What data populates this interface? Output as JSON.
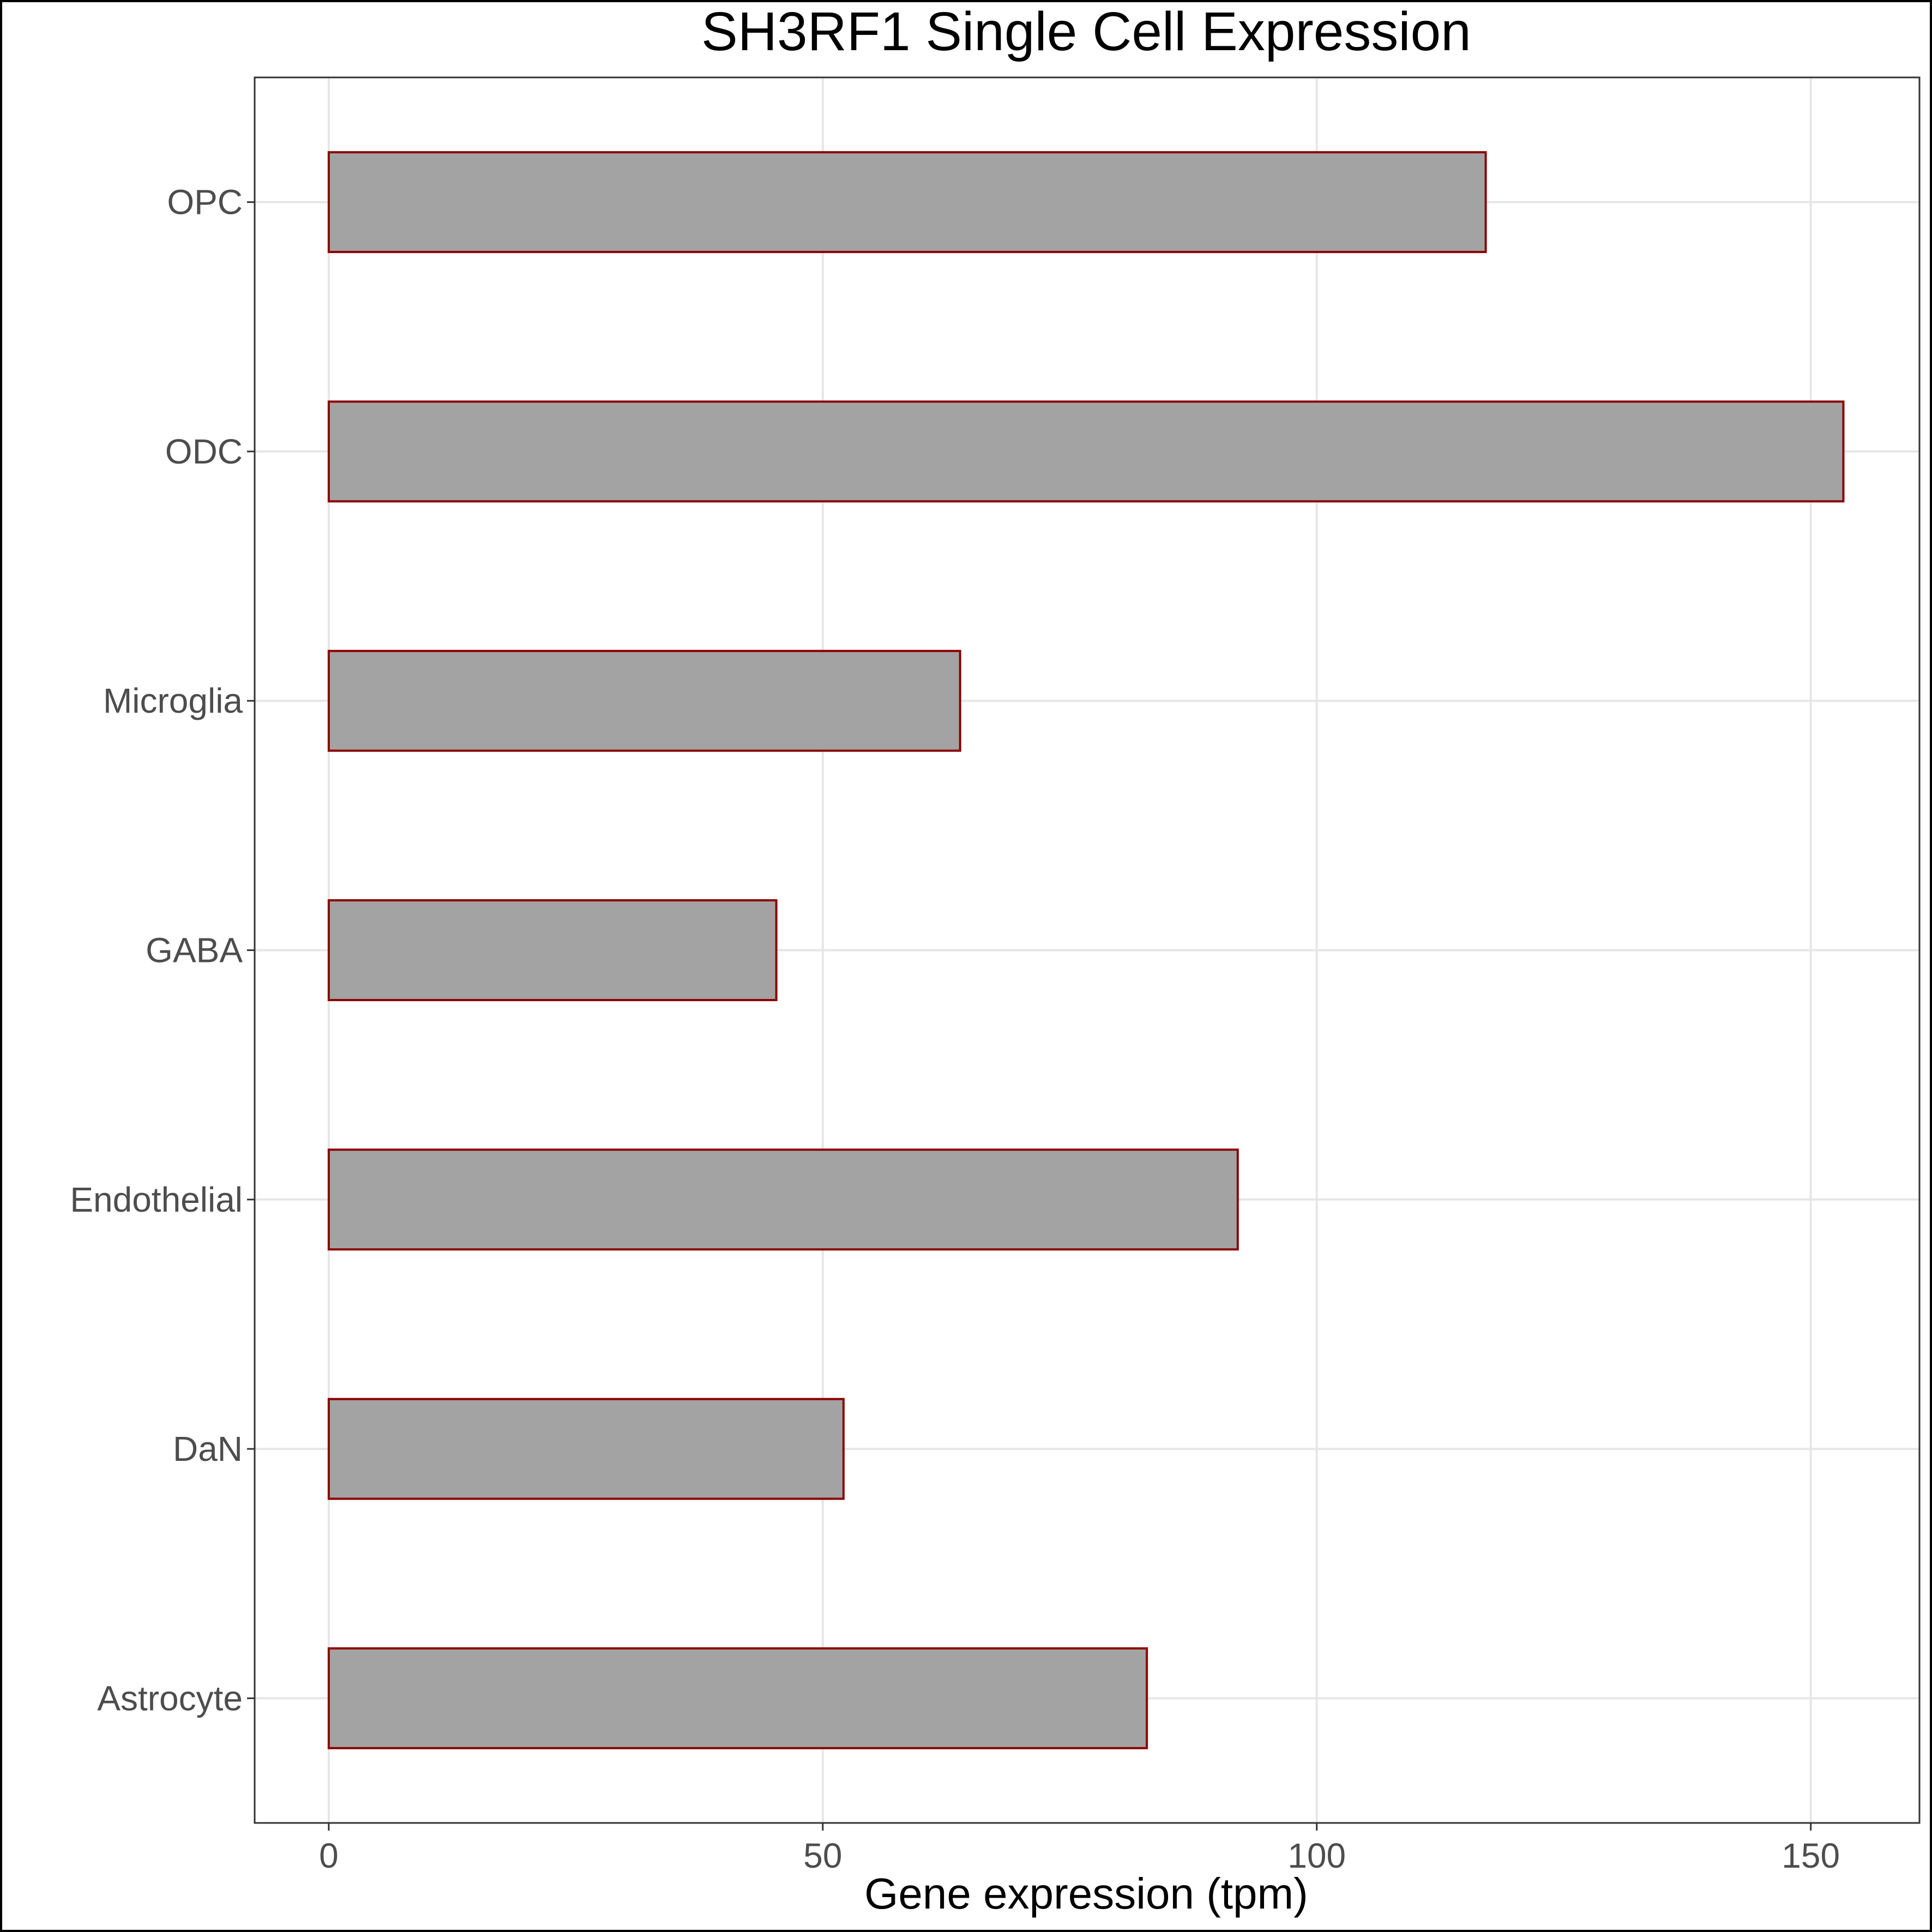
{
  "chart_data": {
    "type": "bar",
    "orientation": "horizontal",
    "title": "SH3RF1 Single Cell Expression",
    "xlabel": "Gene expression (tpm)",
    "ylabel": "",
    "categories": [
      "Astrocyte",
      "DaN",
      "Endothelial",
      "GABA",
      "Microglia",
      "ODC",
      "OPC"
    ],
    "values": [
      82.8,
      52.1,
      92.0,
      45.3,
      63.9,
      153.3,
      117.1
    ],
    "xlim": [
      -7.5,
      161
    ],
    "xticks": [
      0,
      50,
      100,
      150
    ],
    "grid": true,
    "legend": "none",
    "colors": {
      "bar_fill": "#a3a3a3",
      "bar_stroke": "#8b0000",
      "grid": "#e6e6e6",
      "panel_border": "#333333",
      "tick_text": "#4d4d4d",
      "text": "#000000"
    }
  }
}
